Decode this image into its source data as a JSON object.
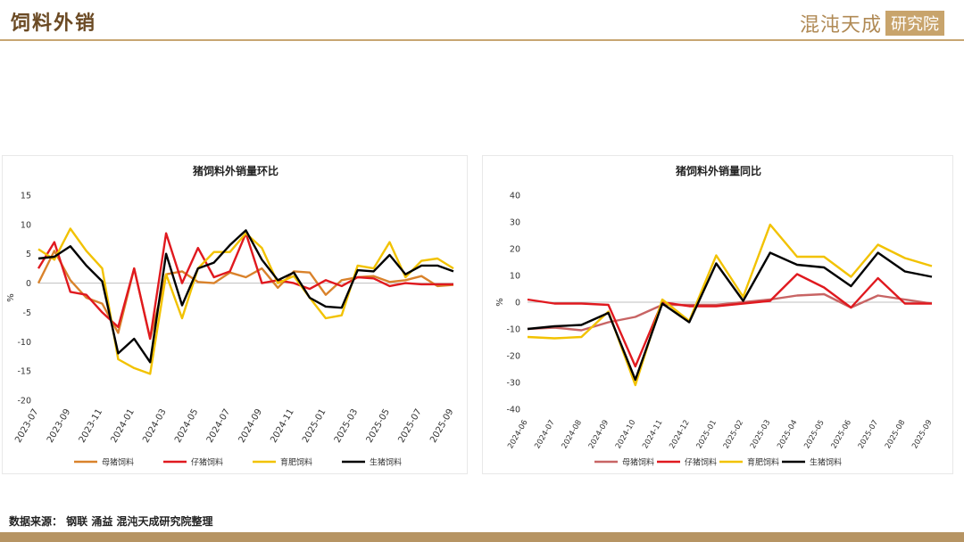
{
  "header": {
    "title": "饲料外销",
    "logo_text": "混沌天成",
    "logo_box_text": "研究院"
  },
  "colors": {
    "accent": "#c7a672",
    "series_sow": "#d9822b",
    "series_piglet": "#e0191f",
    "series_fattening": "#f2c200",
    "series_hog": "#000000",
    "series_sow_yoy": "#c86464"
  },
  "footer": {
    "source": "数据来源：  钢联 涌益 混沌天成研究院整理"
  },
  "chart_data": [
    {
      "type": "line",
      "title": "猪饲料外销量环比",
      "xlabel": "",
      "ylabel": "%",
      "ylim": [
        -20,
        15
      ],
      "yticks": [
        15,
        10,
        5,
        0,
        -5,
        -10,
        -15,
        -20
      ],
      "x": [
        "2023-07",
        "2023-08",
        "2023-09",
        "2023-10",
        "2023-11",
        "2023-12",
        "2024-01",
        "2024-02",
        "2024-03",
        "2024-04",
        "2024-05",
        "2024-06",
        "2024-07",
        "2024-08",
        "2024-09",
        "2024-10",
        "2024-11",
        "2024-12",
        "2025-01",
        "2025-02",
        "2025-03",
        "2025-04",
        "2025-05",
        "2025-06",
        "2025-07",
        "2025-08",
        "2025-09"
      ],
      "tick_labels": [
        "2023-07",
        "2023-09",
        "2023-11",
        "2024-01",
        "2024-03",
        "2024-05",
        "2024-07",
        "2024-09",
        "2024-11",
        "2025-01",
        "2025-03",
        "2025-05",
        "2025-07",
        "2025-09"
      ],
      "series": [
        {
          "name": "母猪饲料",
          "color": "#d9822b",
          "values": [
            0,
            5.5,
            0.5,
            -2.5,
            -3.5,
            -8.5,
            2.5,
            -9.5,
            1.5,
            2,
            0.2,
            0,
            1.8,
            1,
            2.5,
            -0.8,
            2,
            1.8,
            -2,
            0.5,
            1,
            1.2,
            0.2,
            0.5,
            1.2,
            -0.5,
            -0.3
          ]
        },
        {
          "name": "仔猪饲料",
          "color": "#e0191f",
          "values": [
            2.5,
            7,
            -1.5,
            -2,
            -5,
            -7.5,
            2.5,
            -9.5,
            8.5,
            0,
            6,
            1,
            2,
            8.5,
            0,
            0.5,
            0,
            -1,
            0.5,
            -0.5,
            1,
            0.8,
            -0.5,
            0,
            -0.2,
            -0.2,
            -0.2
          ]
        },
        {
          "name": "育肥饲料",
          "color": "#f2c200",
          "values": [
            5.8,
            4,
            9.3,
            5.5,
            2.5,
            -13,
            -14.5,
            -15.5,
            1.5,
            -6,
            2.5,
            5.3,
            5.3,
            8.5,
            6,
            0,
            1.2,
            -2.5,
            -6,
            -5.5,
            3,
            2.5,
            7,
            1,
            3.8,
            4.2,
            2.5
          ]
        },
        {
          "name": "生猪饲料",
          "color": "#000000",
          "values": [
            4.2,
            4.5,
            6.3,
            3,
            0.3,
            -12,
            -9.5,
            -13.5,
            5,
            -3.8,
            2.5,
            3.5,
            6.5,
            9,
            4,
            0.5,
            1.8,
            -2.5,
            -4,
            -4.2,
            2.2,
            2,
            4.8,
            1.5,
            3,
            3,
            2
          ]
        }
      ]
    },
    {
      "type": "line",
      "title": "猪饲料外销量同比",
      "xlabel": "",
      "ylabel": "%",
      "ylim": [
        -40,
        40
      ],
      "yticks": [
        40,
        30,
        20,
        10,
        0,
        -10,
        -20,
        -30,
        -40
      ],
      "x": [
        "2024-06",
        "2024-07",
        "2024-08",
        "2024-09",
        "2024-10",
        "2024-11",
        "2024-12",
        "2025-01",
        "2025-02",
        "2025-03",
        "2025-04",
        "2025-05",
        "2025-06",
        "2025-07",
        "2025-08",
        "2025-09"
      ],
      "tick_labels": [
        "2024-06",
        "2024-07",
        "2024-08",
        "2024-09",
        "2024-10",
        "2024-11",
        "2024-12",
        "2025-01",
        "2025-02",
        "2025-03",
        "2025-04",
        "2025-05",
        "2025-06",
        "2025-07",
        "2025-08",
        "2025-09"
      ],
      "series": [
        {
          "name": "母猪饲料",
          "color": "#c86464",
          "values": [
            -10,
            -9.5,
            -10.5,
            -7.5,
            -5.5,
            -1,
            -1,
            -1,
            0,
            1,
            2.5,
            3,
            -2,
            2.5,
            1,
            -0.5
          ]
        },
        {
          "name": "仔猪饲料",
          "color": "#e0191f",
          "values": [
            1,
            -0.5,
            -0.5,
            -1,
            -24,
            0,
            -1.5,
            -1.5,
            -0.5,
            0.5,
            10.5,
            5.5,
            -2,
            9,
            -0.5,
            -0.5
          ]
        },
        {
          "name": "育肥饲料",
          "color": "#f2c200",
          "values": [
            -13,
            -13.5,
            -13,
            -3.5,
            -31,
            1,
            -7,
            17.5,
            2,
            29,
            17,
            17,
            9.5,
            21.5,
            16.5,
            13.5
          ]
        },
        {
          "name": "生猪饲料",
          "color": "#000000",
          "values": [
            -10,
            -9,
            -8.5,
            -4,
            -29,
            -0.5,
            -7.5,
            14.5,
            0.5,
            18.5,
            14,
            13,
            6,
            18.5,
            11.5,
            9.5
          ]
        }
      ]
    }
  ]
}
